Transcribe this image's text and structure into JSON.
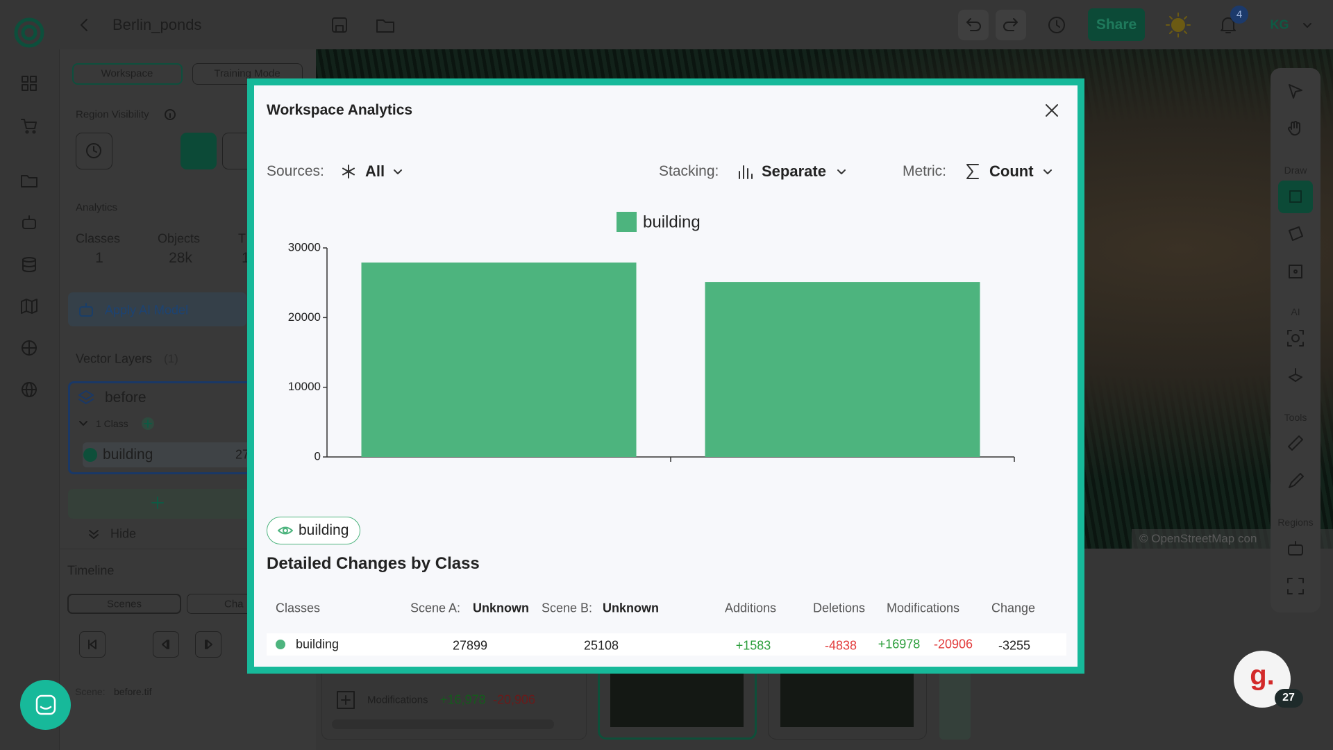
{
  "header": {
    "project_name": "Berlin_ponds",
    "share": "Share",
    "notification_count": "4",
    "user_initials": "KG"
  },
  "sidebar": {
    "tabs": [
      "Workspace",
      "Training Mode"
    ],
    "region_visibility": "Region Visibility",
    "analytics": {
      "title": "Analytics",
      "stats": [
        {
          "label": "Classes",
          "value": "1"
        },
        {
          "label": "Objects",
          "value": "28k"
        },
        {
          "label": "T",
          "value": "1"
        }
      ]
    },
    "apply_ai_model": "Apply AI Model",
    "vector_layers": {
      "title": "Vector Layers",
      "count": "(1)",
      "layer": {
        "name": "before",
        "class_count": "1 Class",
        "class": {
          "name": "building",
          "count": "27"
        }
      }
    },
    "hide": "Hide"
  },
  "timeline": {
    "title": "Timeline",
    "tabs": [
      "Scenes",
      "Cha"
    ],
    "scene_label": "Scene:",
    "scene_name": "before.tif",
    "modifications": {
      "label": "Modifications",
      "added": "+16,978",
      "removed": "-20,906"
    }
  },
  "map": {
    "attribution": "© OpenStreetMap con"
  },
  "toolbar": {
    "sections": [
      "Draw",
      "AI",
      "Tools",
      "Regions"
    ]
  },
  "support": {
    "badge": "27"
  },
  "modal": {
    "title": "Workspace Analytics",
    "controls": [
      {
        "label": "Sources:",
        "value": "All"
      },
      {
        "label": "Stacking:",
        "value": "Separate"
      },
      {
        "label": "Metric:",
        "value": "Count"
      }
    ],
    "class_chip": "building",
    "section_title": "Detailed Changes by Class",
    "table": {
      "headers": [
        "Classes",
        "Scene A:",
        "Unknown",
        "Scene B:",
        "Unknown",
        "Additions",
        "Deletions",
        "Modifications",
        "Change"
      ],
      "rows": [
        [
          "building",
          "27899",
          "25108",
          "+1583",
          "-4838",
          "+16978",
          "-20906",
          "-3255"
        ]
      ]
    }
  },
  "chart_data": {
    "type": "bar",
    "categories": [
      null,
      null
    ],
    "series": [
      {
        "name": "building",
        "color": "#4db47e",
        "values": [
          27899,
          25108
        ]
      }
    ],
    "ylim": [
      0,
      30000
    ],
    "yticks": [
      0,
      10000,
      20000,
      30000
    ],
    "legend": "top"
  }
}
